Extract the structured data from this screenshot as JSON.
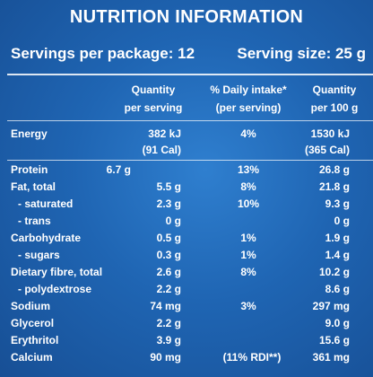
{
  "title": "NUTRITION INFORMATION",
  "servings_per_package": "Servings per package: 12",
  "serving_size": "Serving size: 25 g",
  "headers": {
    "quantity_per_serving_1": "Quantity",
    "quantity_per_serving_2": "per serving",
    "daily_intake_1": "% Daily intake*",
    "daily_intake_2": "(per serving)",
    "quantity_per_100g_1": "Quantity",
    "quantity_per_100g_2": "per 100 g"
  },
  "rows": [
    {
      "name": "Energy",
      "per_serving": "382 kJ",
      "daily": "4%",
      "per_100g": "1530 kJ"
    },
    {
      "name": "",
      "per_serving": "(91 Cal)",
      "daily": "",
      "per_100g": "(365 Cal)"
    },
    {
      "name": "Protein",
      "per_serving": "6.7 g",
      "daily": "13%",
      "per_100g": "26.8 g"
    },
    {
      "name": "Fat, total",
      "per_serving": "5.5 g",
      "daily": "8%",
      "per_100g": "21.8 g"
    },
    {
      "name": "- saturated",
      "per_serving": "2.3 g",
      "daily": "10%",
      "per_100g": "9.3 g"
    },
    {
      "name": "- trans",
      "per_serving": "0 g",
      "daily": "",
      "per_100g": "0 g"
    },
    {
      "name": "Carbohydrate",
      "per_serving": "0.5 g",
      "daily": "1%",
      "per_100g": "1.9 g"
    },
    {
      "name": "- sugars",
      "per_serving": "0.3 g",
      "daily": "1%",
      "per_100g": "1.4 g"
    },
    {
      "name": "Dietary fibre, total",
      "per_serving": "2.6 g",
      "daily": "8%",
      "per_100g": "10.2 g"
    },
    {
      "name": "- polydextrose",
      "per_serving": "2.2 g",
      "daily": "",
      "per_100g": "8.6 g"
    },
    {
      "name": "Sodium",
      "per_serving": "74 mg",
      "daily": "3%",
      "per_100g": "297 mg"
    },
    {
      "name": "Glycerol",
      "per_serving": "2.2 g",
      "daily": "",
      "per_100g": "9.0 g"
    },
    {
      "name": "Erythritol",
      "per_serving": "3.9 g",
      "daily": "",
      "per_100g": "15.6 g"
    },
    {
      "name": "Calcium",
      "per_serving": "90 mg",
      "daily": "(11% RDI**)",
      "per_100g": "361 mg"
    }
  ]
}
